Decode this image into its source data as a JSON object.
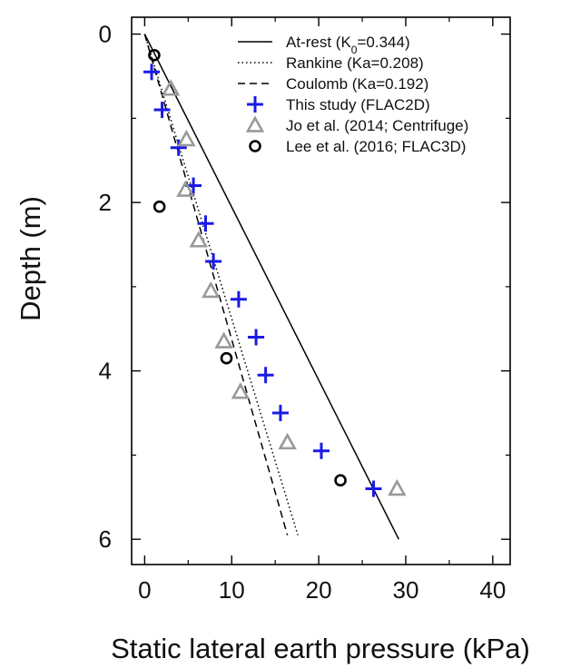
{
  "chart_data": {
    "type": "scatter",
    "xlabel": "Static lateral earth pressure (kPa)",
    "ylabel": "Depth (m)",
    "xlim": [
      -1.5,
      42
    ],
    "ylim": [
      -0.2,
      6.3
    ],
    "y_inverted": true,
    "x_ticks": [
      0,
      10,
      20,
      30,
      40
    ],
    "y_ticks": [
      0,
      2,
      4,
      6
    ],
    "legend_position": "top-right",
    "lines": [
      {
        "name": "At-rest (K0=0.344)",
        "name_main": "At-rest (K",
        "name_sub": "0",
        "name_tail": "=0.344)",
        "dash": "solid",
        "color": "#000000",
        "x": [
          0,
          29.2
        ],
        "y": [
          0,
          6
        ]
      },
      {
        "name": "Rankine (Ka=0.208)",
        "dash": "dotted",
        "color": "#000000",
        "x": [
          0,
          17.6
        ],
        "y": [
          0,
          5.95
        ]
      },
      {
        "name": "Coulomb (Ka=0.192)",
        "dash": "dashed",
        "color": "#000000",
        "x": [
          0,
          16.4
        ],
        "y": [
          0,
          5.95
        ]
      }
    ],
    "series": [
      {
        "name": "This study (FLAC2D)",
        "marker": "plus",
        "color": "#1a1ae6",
        "points": [
          [
            0.8,
            0.45
          ],
          [
            2.0,
            0.9
          ],
          [
            3.9,
            1.35
          ],
          [
            5.6,
            1.8
          ],
          [
            7.0,
            2.25
          ],
          [
            7.9,
            2.7
          ],
          [
            10.8,
            3.15
          ],
          [
            12.8,
            3.6
          ],
          [
            13.9,
            4.05
          ],
          [
            15.6,
            4.5
          ],
          [
            20.3,
            4.95
          ],
          [
            26.3,
            5.4
          ]
        ]
      },
      {
        "name": "Jo et al. (2014; Centrifuge)",
        "marker": "triangle",
        "color": "#999999",
        "points": [
          [
            3.0,
            0.65
          ],
          [
            4.8,
            1.25
          ],
          [
            4.7,
            1.85
          ],
          [
            6.2,
            2.45
          ],
          [
            7.6,
            3.05
          ],
          [
            9.1,
            3.65
          ],
          [
            11.0,
            4.25
          ],
          [
            16.4,
            4.85
          ],
          [
            29.0,
            5.4
          ]
        ]
      },
      {
        "name": "Lee et al. (2016; FLAC3D)",
        "marker": "circle",
        "color": "#000000",
        "points": [
          [
            1.1,
            0.25
          ],
          [
            1.7,
            2.05
          ],
          [
            9.4,
            3.85
          ],
          [
            22.5,
            5.3
          ]
        ]
      }
    ]
  }
}
